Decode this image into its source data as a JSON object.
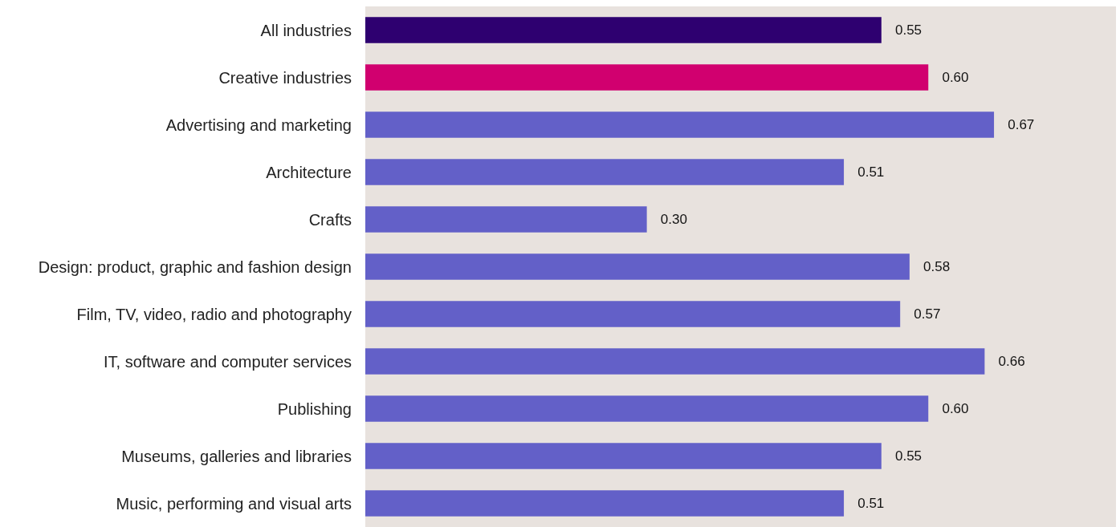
{
  "chart_data": {
    "type": "bar",
    "orientation": "horizontal",
    "categories": [
      "All industries",
      "Creative industries",
      "Advertising and marketing",
      "Architecture",
      "Crafts",
      "Design: product, graphic and fashion design",
      "Film, TV, video, radio and photography",
      "IT, software and computer services",
      "Publishing",
      "Museums, galleries and libraries",
      "Music, performing and visual arts"
    ],
    "values": [
      0.55,
      0.6,
      0.67,
      0.51,
      0.3,
      0.58,
      0.57,
      0.66,
      0.6,
      0.55,
      0.51
    ],
    "colors": [
      "#2e0070",
      "#d1006f",
      "#6360c8",
      "#6360c8",
      "#6360c8",
      "#6360c8",
      "#6360c8",
      "#6360c8",
      "#6360c8",
      "#6360c8",
      "#6360c8"
    ],
    "value_labels": [
      "0.55",
      "0.60",
      "0.67",
      "0.51",
      "0.30",
      "0.58",
      "0.57",
      "0.66",
      "0.60",
      "0.55",
      "0.51"
    ],
    "xlim": [
      0,
      0.8
    ],
    "tick_labels": "y",
    "grid": false,
    "legend": false
  }
}
